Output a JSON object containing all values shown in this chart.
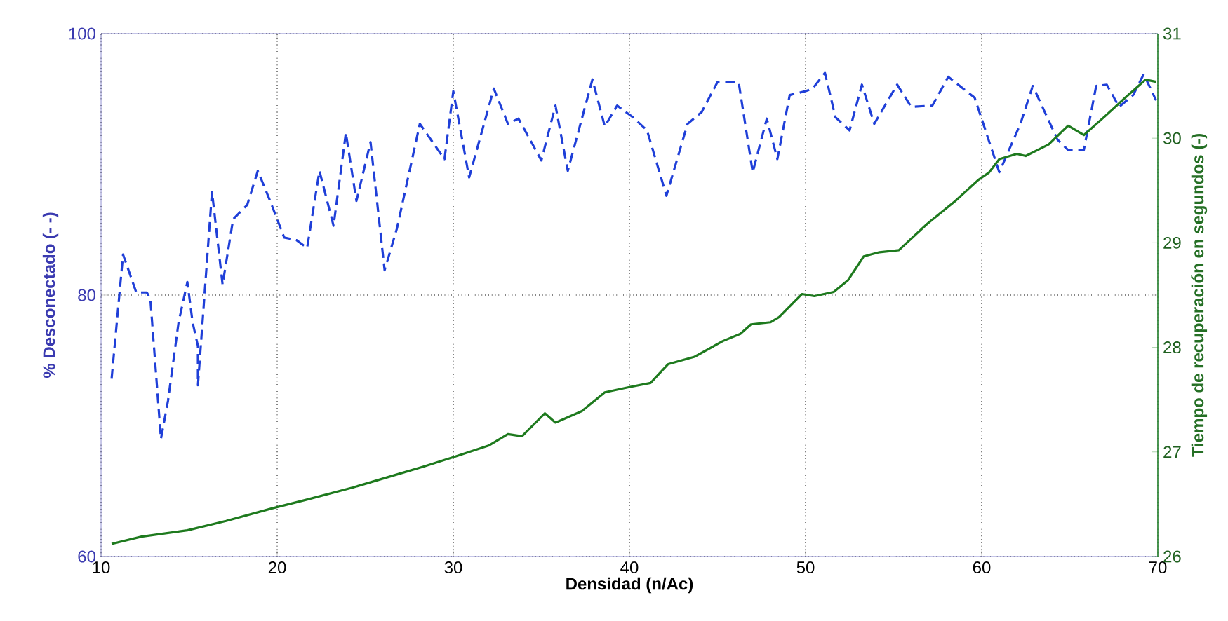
{
  "chart_data": {
    "type": "line",
    "xlabel": "Densidad (n/Ac)",
    "ylabel": "% Desconectado (- -)",
    "y2label": "Tiempo de recuperación en segundos (-)",
    "xlim": [
      10,
      70
    ],
    "xticks": [
      10,
      20,
      30,
      40,
      50,
      60,
      70
    ],
    "ylim": [
      60,
      100
    ],
    "yticks": [
      60,
      80,
      100
    ],
    "y2lim": [
      26,
      31
    ],
    "y2ticks": [
      26,
      27,
      28,
      29,
      30,
      31
    ],
    "grid": true,
    "series": [
      {
        "color": "#1f3fd8",
        "line_style": "dashed",
        "x": [
          10.6,
          11.25,
          12.0,
          12.6,
          12.8,
          13.4,
          13.8,
          14.4,
          14.9,
          15.2,
          15.5,
          15.5,
          16.3,
          16.9,
          17.5,
          18.3,
          18.9,
          19.6,
          20.4,
          21.1,
          21.7,
          22.4,
          23.2,
          23.9,
          24.5,
          25.3,
          26.1,
          26.8,
          28.1,
          29.5,
          30.0,
          30.9,
          32.3,
          33.1,
          33.7,
          35.0,
          35.8,
          36.5,
          37.9,
          38.6,
          39.3,
          40.2,
          41.0,
          42.1,
          43.3,
          44.1,
          45.0,
          46.2,
          47.0,
          47.8,
          48.4,
          49.1,
          50.0,
          50.4,
          51.1,
          51.7,
          52.5,
          53.2,
          53.9,
          55.2,
          56.0,
          57.2,
          58.1,
          59.6,
          61.0,
          62.2,
          62.9,
          64.3,
          64.9,
          65.8,
          66.5,
          67.1,
          67.8,
          68.6,
          69.2,
          69.9
        ],
        "values": [
          73.6,
          83.1,
          80.2,
          80.2,
          79.7,
          69.0,
          71.9,
          77.9,
          81.0,
          77.9,
          76.1,
          73.1,
          87.9,
          80.8,
          85.8,
          86.9,
          89.5,
          87.2,
          84.4,
          84.2,
          83.6,
          89.5,
          85.3,
          92.4,
          87.2,
          91.7,
          81.9,
          85.1,
          93.1,
          90.4,
          95.6,
          89.0,
          95.8,
          93.1,
          93.5,
          90.3,
          94.5,
          89.5,
          96.5,
          92.9,
          94.5,
          93.6,
          92.6,
          87.6,
          93.1,
          94.0,
          96.3,
          96.3,
          89.4,
          93.5,
          90.4,
          95.3,
          95.6,
          95.8,
          97.0,
          93.6,
          92.6,
          96.1,
          93.1,
          96.1,
          94.4,
          94.5,
          96.7,
          95.1,
          89.4,
          93.1,
          96.0,
          91.9,
          91.1,
          91.1,
          96.0,
          96.1,
          94.4,
          95.3,
          96.9,
          94.9
        ]
      },
      {
        "color": "#1e7a1e",
        "line_style": "solid",
        "axis": "y2",
        "x": [
          10.6,
          12.3,
          14.9,
          17.1,
          19.7,
          21.6,
          24.3,
          26.9,
          28.3,
          30.0,
          32.0,
          33.1,
          33.9,
          35.2,
          35.8,
          37.3,
          38.6,
          40.0,
          41.2,
          42.2,
          43.7,
          45.3,
          46.3,
          46.9,
          48.0,
          48.5,
          49.8,
          50.5,
          51.6,
          52.4,
          53.3,
          54.2,
          55.3,
          56.9,
          58.5,
          59.8,
          60.4,
          61.0,
          62.0,
          62.5,
          63.8,
          64.9,
          65.8,
          67.0,
          68.1,
          69.3,
          69.9
        ],
        "values": [
          26.12,
          26.19,
          26.25,
          26.34,
          26.46,
          26.54,
          26.66,
          26.79,
          26.86,
          26.95,
          27.06,
          27.17,
          27.15,
          27.37,
          27.28,
          27.39,
          27.57,
          27.62,
          27.66,
          27.84,
          27.91,
          28.06,
          28.13,
          28.22,
          28.24,
          28.29,
          28.51,
          28.49,
          28.53,
          28.64,
          28.87,
          28.91,
          28.93,
          29.18,
          29.4,
          29.6,
          29.67,
          29.8,
          29.85,
          29.83,
          29.94,
          30.12,
          30.03,
          30.21,
          30.38,
          30.56,
          30.54
        ]
      }
    ]
  }
}
